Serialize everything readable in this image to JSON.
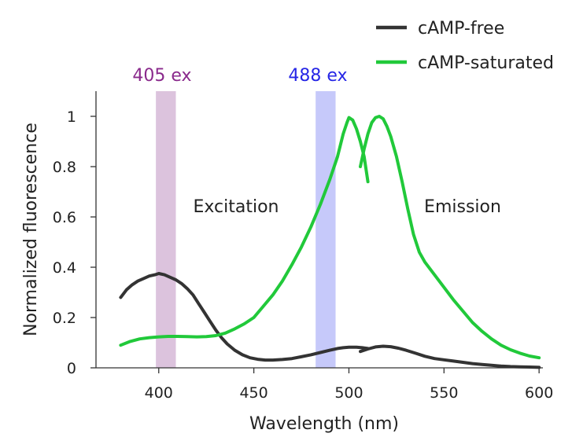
{
  "chart_data": {
    "type": "line",
    "xlabel": "Wavelength (nm)",
    "ylabel": "Normalized fluorescence",
    "xlim": [
      367,
      602
    ],
    "ylim": [
      0,
      1.1
    ],
    "x_ticks": [
      400,
      450,
      500,
      550,
      600
    ],
    "x_tick_labels": [
      "400",
      "450",
      "500",
      "550",
      "600"
    ],
    "y_ticks": [
      0,
      0.2,
      0.4,
      0.6,
      0.8,
      1
    ],
    "y_tick_labels": [
      "0",
      "0.2",
      "0.4",
      "0.6",
      "0.8",
      "1"
    ],
    "bands": [
      {
        "name": "405 ex",
        "x_start": 398.5,
        "x_end": 409,
        "color": "#dcc3dd",
        "label_color": "#8a2a8c"
      },
      {
        "name": "488 ex",
        "x_start": 482.5,
        "x_end": 493,
        "color": "#c6c9fa",
        "label_color": "#2626e6"
      }
    ],
    "annotations": [
      {
        "text": "Excitation",
        "x": 443,
        "y": 0.64
      },
      {
        "text": "Emission",
        "x": 560,
        "y": 0.64
      }
    ],
    "legend_position": "top-right",
    "series": [
      {
        "name": "cAMP-free",
        "color": "#333333",
        "segments": [
          [
            [
              380,
              0.28
            ],
            [
              383,
              0.31
            ],
            [
              386,
              0.33
            ],
            [
              389,
              0.345
            ],
            [
              392,
              0.355
            ],
            [
              395,
              0.365
            ],
            [
              398,
              0.37
            ],
            [
              400,
              0.375
            ],
            [
              403,
              0.37
            ],
            [
              406,
              0.36
            ],
            [
              409,
              0.35
            ],
            [
              412,
              0.335
            ],
            [
              415,
              0.315
            ],
            [
              418,
              0.29
            ],
            [
              421,
              0.255
            ],
            [
              424,
              0.22
            ],
            [
              427,
              0.185
            ],
            [
              430,
              0.15
            ],
            [
              433,
              0.12
            ],
            [
              436,
              0.095
            ],
            [
              440,
              0.07
            ],
            [
              444,
              0.052
            ],
            [
              448,
              0.04
            ],
            [
              452,
              0.034
            ],
            [
              456,
              0.031
            ],
            [
              460,
              0.031
            ],
            [
              465,
              0.033
            ],
            [
              470,
              0.037
            ],
            [
              475,
              0.044
            ],
            [
              480,
              0.052
            ],
            [
              485,
              0.061
            ],
            [
              490,
              0.07
            ],
            [
              494,
              0.077
            ],
            [
              497,
              0.08
            ],
            [
              500,
              0.082
            ],
            [
              504,
              0.082
            ],
            [
              507,
              0.08
            ],
            [
              510,
              0.077
            ]
          ],
          [
            [
              506,
              0.065
            ],
            [
              510,
              0.075
            ],
            [
              514,
              0.083
            ],
            [
              518,
              0.086
            ],
            [
              522,
              0.084
            ],
            [
              526,
              0.078
            ],
            [
              530,
              0.07
            ],
            [
              535,
              0.058
            ],
            [
              540,
              0.046
            ],
            [
              545,
              0.037
            ],
            [
              550,
              0.032
            ],
            [
              555,
              0.027
            ],
            [
              560,
              0.022
            ],
            [
              565,
              0.017
            ],
            [
              570,
              0.013
            ],
            [
              575,
              0.01
            ],
            [
              580,
              0.007
            ],
            [
              585,
              0.005
            ],
            [
              590,
              0.004
            ],
            [
              595,
              0.003
            ],
            [
              600,
              0.002
            ]
          ]
        ]
      },
      {
        "name": "cAMP-saturated",
        "color": "#21c93a",
        "segments": [
          [
            [
              380,
              0.09
            ],
            [
              385,
              0.105
            ],
            [
              390,
              0.115
            ],
            [
              395,
              0.12
            ],
            [
              400,
              0.123
            ],
            [
              405,
              0.125
            ],
            [
              410,
              0.125
            ],
            [
              415,
              0.124
            ],
            [
              420,
              0.123
            ],
            [
              425,
              0.124
            ],
            [
              430,
              0.128
            ],
            [
              435,
              0.138
            ],
            [
              440,
              0.155
            ],
            [
              445,
              0.175
            ],
            [
              450,
              0.2
            ],
            [
              455,
              0.245
            ],
            [
              460,
              0.29
            ],
            [
              465,
              0.345
            ],
            [
              470,
              0.41
            ],
            [
              475,
              0.48
            ],
            [
              480,
              0.56
            ],
            [
              485,
              0.65
            ],
            [
              490,
              0.75
            ],
            [
              494,
              0.84
            ],
            [
              497,
              0.93
            ],
            [
              499,
              0.975
            ],
            [
              500,
              0.995
            ],
            [
              502,
              0.985
            ],
            [
              504,
              0.95
            ],
            [
              506,
              0.9
            ],
            [
              508,
              0.84
            ],
            [
              510,
              0.74
            ]
          ],
          [
            [
              506,
              0.8
            ],
            [
              508,
              0.87
            ],
            [
              510,
              0.93
            ],
            [
              512,
              0.975
            ],
            [
              514,
              0.995
            ],
            [
              516,
              1.0
            ],
            [
              518,
              0.99
            ],
            [
              520,
              0.96
            ],
            [
              522,
              0.92
            ],
            [
              525,
              0.84
            ],
            [
              528,
              0.74
            ],
            [
              531,
              0.63
            ],
            [
              534,
              0.53
            ],
            [
              537,
              0.46
            ],
            [
              540,
              0.42
            ],
            [
              545,
              0.37
            ],
            [
              550,
              0.32
            ],
            [
              555,
              0.27
            ],
            [
              560,
              0.225
            ],
            [
              565,
              0.18
            ],
            [
              570,
              0.145
            ],
            [
              575,
              0.115
            ],
            [
              580,
              0.09
            ],
            [
              585,
              0.072
            ],
            [
              590,
              0.058
            ],
            [
              595,
              0.047
            ],
            [
              600,
              0.04
            ]
          ]
        ]
      }
    ]
  }
}
